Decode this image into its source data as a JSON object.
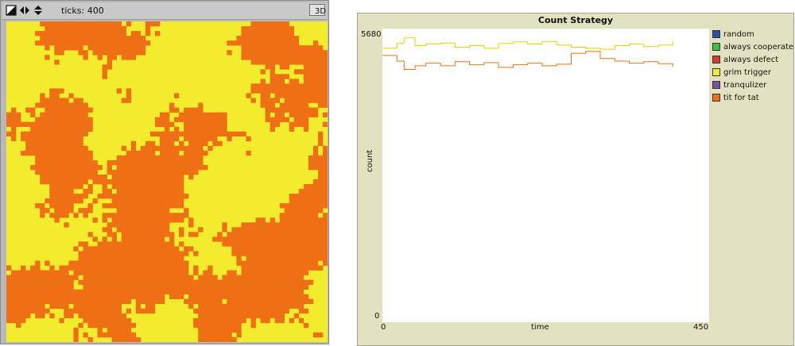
{
  "world": {
    "ticks_label": "ticks: 400",
    "button_3d": "3D",
    "grid_cols": 67,
    "grid_rows": 67,
    "colors": {
      "background": "#f2ec2c",
      "patch": "#ef7014"
    }
  },
  "plot": {
    "title": "Count Strategy",
    "ylabel": "count",
    "xlabel": "time",
    "ymax_label": "5680",
    "ymin_label": "0",
    "xmin_label": "0",
    "xmax_label": "450",
    "legend": [
      {
        "label": "random",
        "color": "#2b4fa8"
      },
      {
        "label": "always cooperate",
        "color": "#3fbf4a"
      },
      {
        "label": "always defect",
        "color": "#d63a2a"
      },
      {
        "label": "grim trigger",
        "color": "#f2ec2c"
      },
      {
        "label": "tranqulizer",
        "color": "#7b4fa3"
      },
      {
        "label": "tit for tat",
        "color": "#ef7014"
      }
    ]
  },
  "chart_data": {
    "type": "line",
    "title": "Count Strategy",
    "xlabel": "time",
    "ylabel": "count",
    "xlim": [
      0,
      450
    ],
    "ylim": [
      0,
      5680
    ],
    "series": [
      {
        "name": "grim trigger",
        "color": "#f2ec2c",
        "x": [
          0,
          20,
          30,
          45,
          60,
          80,
          100,
          120,
          140,
          160,
          180,
          200,
          220,
          240,
          260,
          280,
          300,
          320,
          340,
          360,
          380,
          400
        ],
        "y": [
          5300,
          5400,
          5500,
          5350,
          5380,
          5400,
          5320,
          5350,
          5300,
          5390,
          5420,
          5380,
          5430,
          5360,
          5320,
          5300,
          5280,
          5350,
          5380,
          5330,
          5360,
          5440
        ]
      },
      {
        "name": "tit for tat",
        "color": "#ef7014",
        "x": [
          0,
          20,
          30,
          45,
          60,
          80,
          100,
          120,
          140,
          160,
          180,
          200,
          220,
          240,
          260,
          280,
          300,
          320,
          340,
          360,
          380,
          400
        ],
        "y": [
          5160,
          5050,
          4890,
          4960,
          5010,
          4960,
          5040,
          4980,
          5020,
          4930,
          4980,
          5010,
          4960,
          4990,
          5200,
          5240,
          5100,
          5050,
          5010,
          5040,
          5000,
          4940
        ]
      }
    ]
  }
}
